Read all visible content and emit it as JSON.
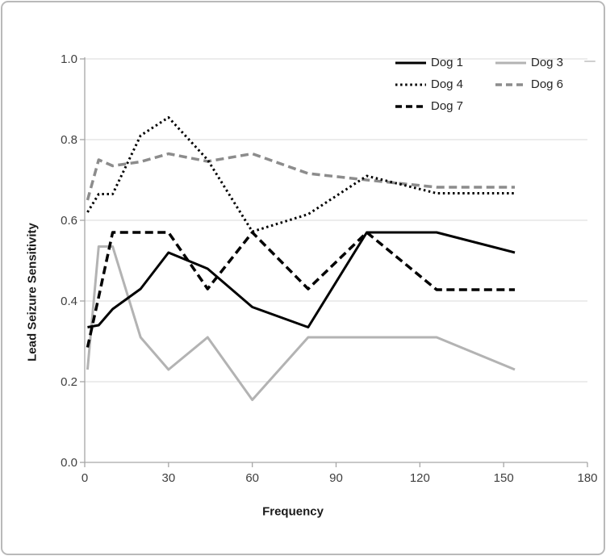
{
  "chart_data": {
    "type": "line",
    "title": "",
    "xlabel": "Frequency",
    "ylabel": "Lead Seizure Sensitivity",
    "xlim": [
      0,
      180
    ],
    "ylim": [
      0.0,
      1.0
    ],
    "x_ticks": [
      0,
      30,
      60,
      90,
      120,
      150,
      180
    ],
    "y_ticks": [
      0.0,
      0.2,
      0.4,
      0.6,
      0.8,
      1.0
    ],
    "grid": "horizontal",
    "legend_position": "top-right-inside",
    "x": [
      1,
      5,
      10,
      20,
      30,
      44,
      60,
      80,
      101,
      126,
      154
    ],
    "series": [
      {
        "name": "Dog 1",
        "color": "#000000",
        "style": "solid",
        "values": [
          0.335,
          0.34,
          0.38,
          0.43,
          0.52,
          0.48,
          0.385,
          0.335,
          0.57,
          0.57,
          0.52
        ]
      },
      {
        "name": "Dog 4",
        "color": "#000000",
        "style": "dotted",
        "values": [
          0.62,
          0.665,
          0.665,
          0.81,
          0.855,
          0.75,
          0.572,
          0.615,
          0.71,
          0.667,
          0.667
        ]
      },
      {
        "name": "Dog 7",
        "color": "#000000",
        "style": "dashed",
        "values": [
          0.285,
          0.41,
          0.57,
          0.57,
          0.57,
          0.43,
          0.57,
          0.43,
          0.57,
          0.428,
          0.428
        ]
      },
      {
        "name": "Dog 3",
        "color": "#b3b3b3",
        "style": "solid",
        "values": [
          0.23,
          0.535,
          0.535,
          0.31,
          0.23,
          0.31,
          0.155,
          0.31,
          0.31,
          0.31,
          0.23
        ]
      },
      {
        "name": "Dog 6",
        "color": "#8c8c8c",
        "style": "dashed",
        "values": [
          0.65,
          0.75,
          0.735,
          0.745,
          0.765,
          0.746,
          0.765,
          0.716,
          0.7,
          0.682,
          0.682
        ]
      }
    ],
    "colors": {
      "gridline": "#d9d9d9",
      "axis": "#a6a6a6",
      "tick_label": "#3f3f3f"
    }
  }
}
